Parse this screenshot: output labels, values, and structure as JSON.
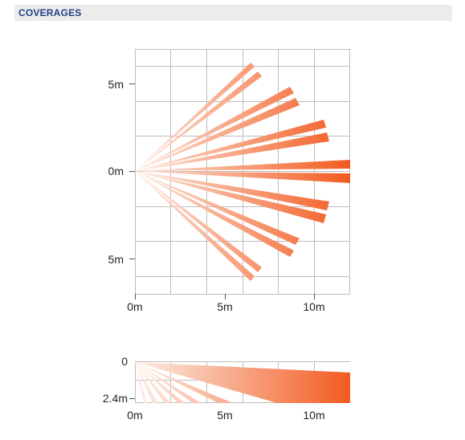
{
  "header": {
    "title": "COVERAGES"
  },
  "top_view": {
    "y_tick_labels": [
      "5m",
      "0m",
      "5m"
    ],
    "x_tick_labels": [
      "0m",
      "5m",
      "10m"
    ],
    "colors": {
      "grid": "#bdbdbd",
      "beam_near": "#fbd9c9",
      "beam_far": "#f25a1f"
    },
    "beam_pairs_angles_deg": [
      50,
      32,
      15,
      3,
      -15,
      -32,
      -50
    ]
  },
  "side_view": {
    "y_tick_labels": [
      "0",
      "2.4m"
    ],
    "x_tick_labels": [
      "0m",
      "5m",
      "10m"
    ]
  }
}
